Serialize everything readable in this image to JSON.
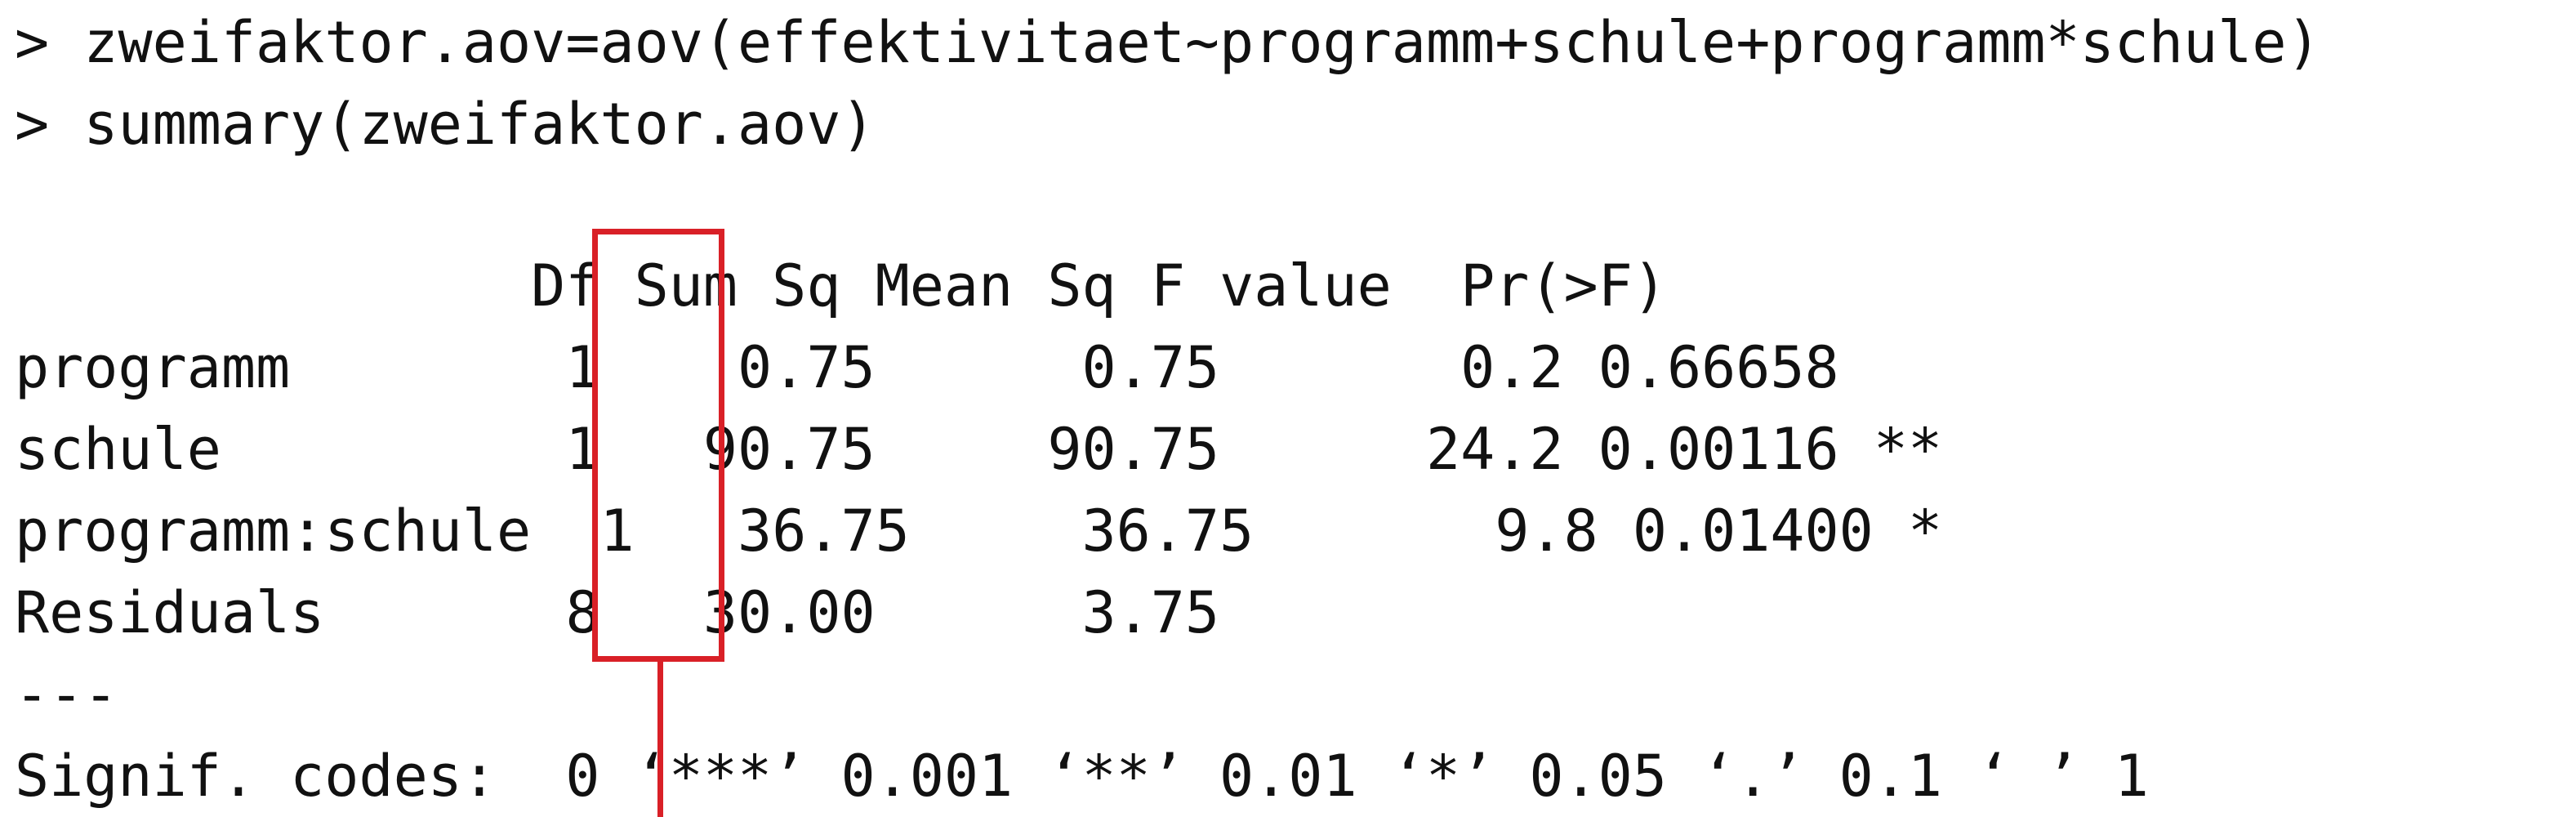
{
  "console": {
    "commands": [
      {
        "prompt": ">",
        "text": "zweifaktor.aov=aov(effektivitaet~programm+schule+programm*schule)"
      },
      {
        "prompt": ">",
        "text": "summary(zweifaktor.aov)"
      }
    ],
    "anova_table": {
      "columns": [
        "Df",
        "Sum Sq",
        "Mean Sq",
        "F value",
        "Pr(>F)"
      ],
      "rows": [
        {
          "term": "programm",
          "df": "1",
          "sum_sq": "0.75",
          "mean_sq": "0.75",
          "f_value": "0.2",
          "p_value": "0.66658",
          "signif": ""
        },
        {
          "term": "schule",
          "df": "1",
          "sum_sq": "90.75",
          "mean_sq": "90.75",
          "f_value": "24.2",
          "p_value": "0.00116",
          "signif": "**"
        },
        {
          "term": "programm:schule",
          "df": "1",
          "sum_sq": "36.75",
          "mean_sq": "36.75",
          "f_value": "9.8",
          "p_value": "0.01400",
          "signif": "*"
        },
        {
          "term": "Residuals",
          "df": "8",
          "sum_sq": "30.00",
          "mean_sq": "3.75",
          "f_value": "",
          "p_value": "",
          "signif": ""
        }
      ],
      "separator": "---",
      "signif_codes_line": "Signif. codes:  0 ‘***’ 0.001 ‘**’ 0.01 ‘*’ 0.05 ‘.’ 0.1 ‘ ’ 1"
    },
    "highlight": {
      "column": "Df",
      "color": "#d92027"
    }
  }
}
